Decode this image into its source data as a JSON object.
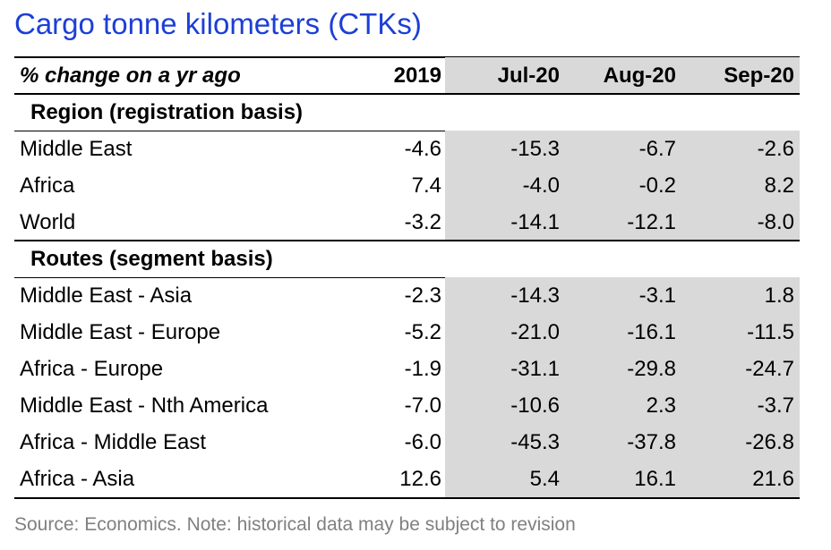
{
  "title": "Cargo tonne kilometers (CTKs)",
  "table": {
    "header": {
      "label": "% change on a yr ago",
      "columns": [
        "2019",
        "Jul-20",
        "Aug-20",
        "Sep-20"
      ]
    },
    "sections": [
      {
        "title": "Region (registration basis)",
        "rows": [
          {
            "label": "Middle East",
            "values": [
              "-4.6",
              "-15.3",
              "-6.7",
              "-2.6"
            ]
          },
          {
            "label": "Africa",
            "values": [
              "7.4",
              "-4.0",
              "-0.2",
              "8.2"
            ]
          },
          {
            "label": "World",
            "values": [
              "-3.2",
              "-14.1",
              "-12.1",
              "-8.0"
            ]
          }
        ]
      },
      {
        "title": "Routes (segment basis)",
        "rows": [
          {
            "label": "Middle East - Asia",
            "values": [
              "-2.3",
              "-14.3",
              "-3.1",
              "1.8"
            ]
          },
          {
            "label": "Middle East - Europe",
            "values": [
              "-5.2",
              "-21.0",
              "-16.1",
              "-11.5"
            ]
          },
          {
            "label": "Africa - Europe",
            "values": [
              "-1.9",
              "-31.1",
              "-29.8",
              "-24.7"
            ]
          },
          {
            "label": "Middle East - Nth America",
            "values": [
              "-7.0",
              "-10.6",
              "2.3",
              "-3.7"
            ]
          },
          {
            "label": "Africa - Middle East",
            "values": [
              "-6.0",
              "-45.3",
              "-37.8",
              "-26.8"
            ]
          },
          {
            "label": "Africa - Asia",
            "values": [
              "12.6",
              "5.4",
              "16.1",
              "21.6"
            ]
          }
        ]
      }
    ]
  },
  "source": "Source: Economics.  Note: historical data may be subject to revision",
  "colors": {
    "title": "#1c3fd6",
    "shade": "#d9d9d9",
    "source": "#808080"
  }
}
